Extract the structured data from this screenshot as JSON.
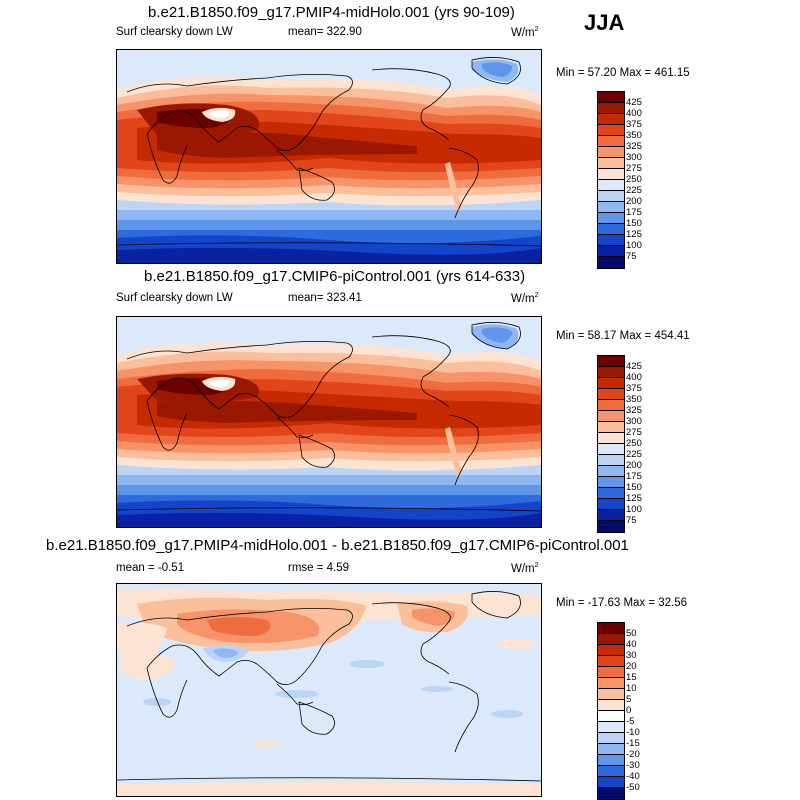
{
  "season": "JJA",
  "panels": [
    {
      "title": "b.e21.B1850.f09_g17.PMIP4-midHolo.001 (yrs 90-109)",
      "variable": "Surf clearsky down LW",
      "mean_text": "mean= 322.90",
      "units": "W/m",
      "units_exp": "2",
      "minmax": "Min =  57.20 Max = 461.15",
      "levels": [
        "425",
        "400",
        "375",
        "350",
        "325",
        "300",
        "275",
        "250",
        "225",
        "200",
        "175",
        "150",
        "125",
        "100",
        "75"
      ]
    },
    {
      "title": "b.e21.B1850.f09_g17.CMIP6-piControl.001 (yrs 614-633)",
      "variable": "Surf clearsky down LW",
      "mean_text": "mean= 323.41",
      "units": "W/m",
      "units_exp": "2",
      "minmax": "Min =  58.17 Max = 454.41",
      "levels": [
        "425",
        "400",
        "375",
        "350",
        "325",
        "300",
        "275",
        "250",
        "225",
        "200",
        "175",
        "150",
        "125",
        "100",
        "75"
      ]
    },
    {
      "title": "b.e21.B1850.f09_g17.PMIP4-midHolo.001 - b.e21.B1850.f09_g17.CMIP6-piControl.001",
      "mean_text": "mean =  -0.51",
      "rmse_text": "rmse =   4.59",
      "units": "W/m",
      "units_exp": "2",
      "minmax": "Min = -17.63 Max =  32.56",
      "levels": [
        "50",
        "40",
        "30",
        "20",
        "15",
        "10",
        "5",
        "0",
        "-5",
        "-10",
        "-15",
        "-20",
        "-30",
        "-40",
        "-50"
      ]
    }
  ],
  "colors": {
    "abs_scale": [
      "#6b0000",
      "#9a1800",
      "#c52a00",
      "#e0461a",
      "#ef6c3f",
      "#f69369",
      "#fbbf9c",
      "#fde3d2",
      "#dbe9fb",
      "#bcd5f7",
      "#8fb8f2",
      "#5f95ea",
      "#2f6bdc",
      "#1245c9",
      "#0a22a0",
      "#020a6a"
    ],
    "diff_scale": [
      "#6b0000",
      "#9a1800",
      "#c52a00",
      "#e0461a",
      "#ef6c3f",
      "#f69369",
      "#fbbf9c",
      "#fde3d2",
      "#ffffff",
      "#dbe9fb",
      "#bcd5f7",
      "#8fb8f2",
      "#5f95ea",
      "#2f6bdc",
      "#1245c9",
      "#020a6a"
    ]
  }
}
